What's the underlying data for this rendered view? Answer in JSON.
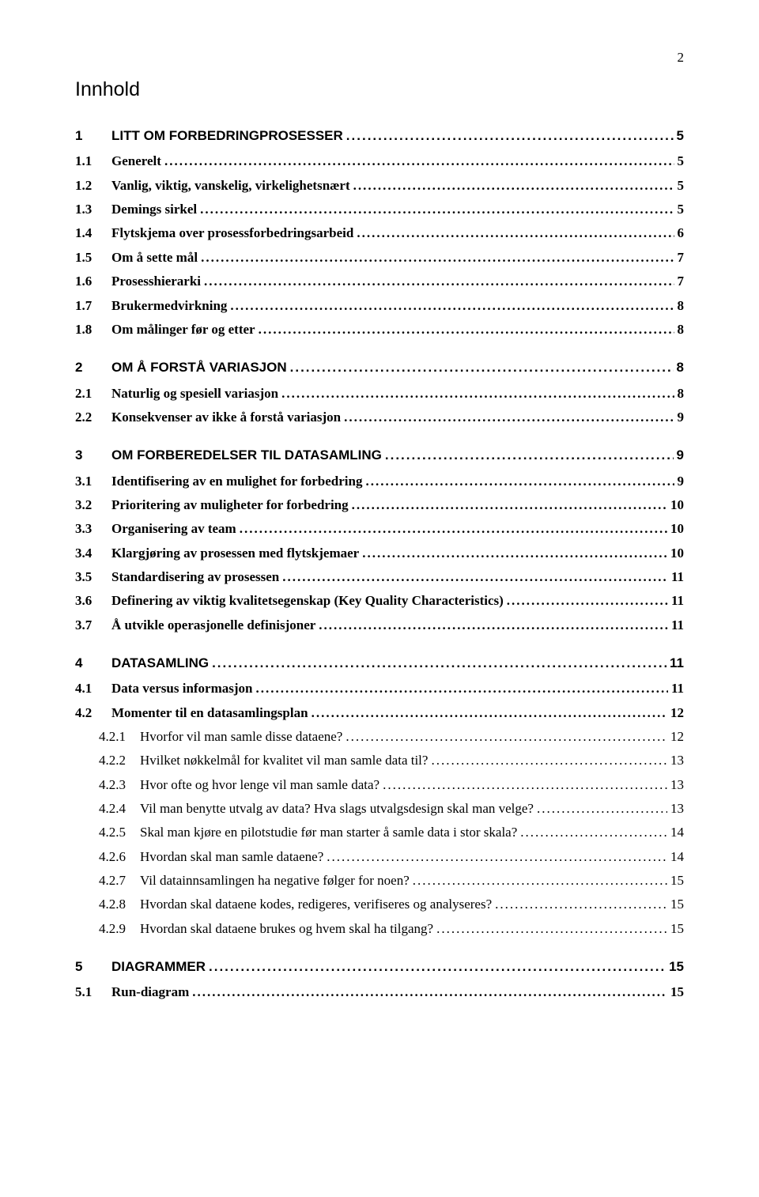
{
  "page_number": "2",
  "doc_title": "Innhold",
  "dot_leader_color": "#000000",
  "text_color": "#000000",
  "background_color": "#ffffff",
  "fonts": {
    "heading_family": "Arial, Helvetica, sans-serif",
    "body_family": "Times New Roman, Times, serif"
  },
  "toc": [
    {
      "level": 1,
      "num": "1",
      "title": "LITT OM FORBEDRINGPROSESSER",
      "page": "5"
    },
    {
      "level": 2,
      "num": "1.1",
      "title": "Generelt",
      "page": "5"
    },
    {
      "level": 2,
      "num": "1.2",
      "title": "Vanlig, viktig, vanskelig, virkelighetsnært",
      "page": "5"
    },
    {
      "level": 2,
      "num": "1.3",
      "title": "Demings sirkel",
      "page": "5"
    },
    {
      "level": 2,
      "num": "1.4",
      "title": "Flytskjema over prosessforbedringsarbeid",
      "page": "6"
    },
    {
      "level": 2,
      "num": "1.5",
      "title": "Om å sette mål",
      "page": "7"
    },
    {
      "level": 2,
      "num": "1.6",
      "title": "Prosesshierarki",
      "page": "7"
    },
    {
      "level": 2,
      "num": "1.7",
      "title": "Brukermedvirkning",
      "page": "8"
    },
    {
      "level": 2,
      "num": "1.8",
      "title": "Om målinger før og etter",
      "page": "8"
    },
    {
      "level": 1,
      "num": "2",
      "title": "OM Å FORSTÅ VARIASJON",
      "page": "8"
    },
    {
      "level": 2,
      "num": "2.1",
      "title": "Naturlig og spesiell variasjon",
      "page": "8"
    },
    {
      "level": 2,
      "num": "2.2",
      "title": "Konsekvenser av ikke å forstå variasjon",
      "page": "9"
    },
    {
      "level": 1,
      "num": "3",
      "title": "OM FORBEREDELSER TIL DATASAMLING",
      "page": "9"
    },
    {
      "level": 2,
      "num": "3.1",
      "title": "Identifisering av en mulighet for forbedring",
      "page": "9"
    },
    {
      "level": 2,
      "num": "3.2",
      "title": "Prioritering av muligheter for forbedring",
      "page": "10"
    },
    {
      "level": 2,
      "num": "3.3",
      "title": "Organisering av team",
      "page": "10"
    },
    {
      "level": 2,
      "num": "3.4",
      "title": "Klargjøring av prosessen med flytskjemaer",
      "page": "10"
    },
    {
      "level": 2,
      "num": "3.5",
      "title": "Standardisering av prosessen",
      "page": "11"
    },
    {
      "level": 2,
      "num": "3.6",
      "title": "Definering av viktig kvalitetsegenskap (Key Quality Characteristics)",
      "page": "11"
    },
    {
      "level": 2,
      "num": "3.7",
      "title": "Å utvikle operasjonelle definisjoner",
      "page": "11"
    },
    {
      "level": 1,
      "num": "4",
      "title": "DATASAMLING",
      "page": "11"
    },
    {
      "level": 2,
      "num": "4.1",
      "title": "Data versus informasjon",
      "page": "11"
    },
    {
      "level": 2,
      "num": "4.2",
      "title": "Momenter til en datasamlingsplan",
      "page": "12"
    },
    {
      "level": 3,
      "num": "4.2.1",
      "title": "Hvorfor vil man samle disse dataene?",
      "page": "12"
    },
    {
      "level": 3,
      "num": "4.2.2",
      "title": "Hvilket nøkkelmål for kvalitet vil man samle data til?",
      "page": "13"
    },
    {
      "level": 3,
      "num": "4.2.3",
      "title": "Hvor ofte og hvor lenge vil man samle data?",
      "page": "13"
    },
    {
      "level": 3,
      "num": "4.2.4",
      "title": "Vil man benytte utvalg av data? Hva slags utvalgsdesign skal man velge?",
      "page": "13"
    },
    {
      "level": 3,
      "num": "4.2.5",
      "title": "Skal man kjøre en pilotstudie før man starter å samle data i stor skala?",
      "page": "14"
    },
    {
      "level": 3,
      "num": "4.2.6",
      "title": "Hvordan skal man samle dataene?",
      "page": "14"
    },
    {
      "level": 3,
      "num": "4.2.7",
      "title": "Vil datainnsamlingen ha negative følger for noen?",
      "page": "15"
    },
    {
      "level": 3,
      "num": "4.2.8",
      "title": "Hvordan skal dataene kodes, redigeres, verifiseres og analyseres?",
      "page": "15"
    },
    {
      "level": 3,
      "num": "4.2.9",
      "title": "Hvordan skal dataene brukes og hvem skal ha tilgang?",
      "page": "15"
    },
    {
      "level": 1,
      "num": "5",
      "title": "DIAGRAMMER",
      "page": "15"
    },
    {
      "level": 2,
      "num": "5.1",
      "title": "Run-diagram",
      "page": "15"
    }
  ]
}
